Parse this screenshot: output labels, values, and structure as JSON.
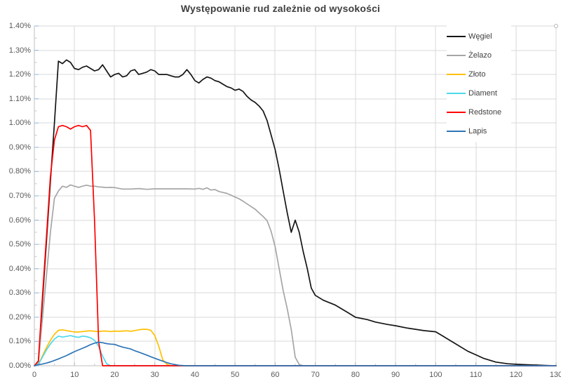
{
  "chart_data": {
    "type": "line",
    "title": "Występowanie rud zależnie od wysokości",
    "xlabel": "",
    "ylabel": "",
    "xlim": [
      0,
      130
    ],
    "ylim_percent": [
      0,
      1.4
    ],
    "grid": "on",
    "legend_position": "right-inside",
    "x_ticks": [
      "0",
      "10",
      "20",
      "30",
      "40",
      "50",
      "60",
      "70",
      "80",
      "90",
      "100",
      "110",
      "120",
      "130"
    ],
    "y_ticks": [
      "0.00%",
      "0.10%",
      "0.20%",
      "0.30%",
      "0.40%",
      "0.50%",
      "0.60%",
      "0.70%",
      "0.80%",
      "0.90%",
      "1.00%",
      "1.10%",
      "1.20%",
      "1.30%",
      "1.40%"
    ],
    "x_tick_values": [
      0,
      10,
      20,
      30,
      40,
      50,
      60,
      70,
      80,
      90,
      100,
      110,
      120,
      130
    ],
    "y_tick_values": [
      0,
      0.1,
      0.2,
      0.3,
      0.4,
      0.5,
      0.6,
      0.7,
      0.8,
      0.9,
      1.0,
      1.1,
      1.2,
      1.3,
      1.4
    ],
    "series": [
      {
        "name": "Węgiel",
        "color": "#151515",
        "points": [
          [
            0,
            0
          ],
          [
            1,
            0.01
          ],
          [
            2,
            0.26
          ],
          [
            3,
            0.51
          ],
          [
            4,
            0.76
          ],
          [
            5,
            1.0
          ],
          [
            6,
            1.255
          ],
          [
            7,
            1.245
          ],
          [
            8,
            1.26
          ],
          [
            9,
            1.25
          ],
          [
            10,
            1.225
          ],
          [
            11,
            1.22
          ],
          [
            12,
            1.23
          ],
          [
            13,
            1.235
          ],
          [
            14,
            1.225
          ],
          [
            15,
            1.215
          ],
          [
            16,
            1.22
          ],
          [
            17,
            1.24
          ],
          [
            18,
            1.215
          ],
          [
            19,
            1.19
          ],
          [
            20,
            1.2
          ],
          [
            21,
            1.205
          ],
          [
            22,
            1.19
          ],
          [
            23,
            1.195
          ],
          [
            24,
            1.215
          ],
          [
            25,
            1.22
          ],
          [
            26,
            1.2
          ],
          [
            27,
            1.205
          ],
          [
            28,
            1.21
          ],
          [
            29,
            1.22
          ],
          [
            30,
            1.215
          ],
          [
            31,
            1.2
          ],
          [
            32,
            1.2
          ],
          [
            33,
            1.2
          ],
          [
            34,
            1.195
          ],
          [
            35,
            1.19
          ],
          [
            36,
            1.19
          ],
          [
            37,
            1.2
          ],
          [
            38,
            1.22
          ],
          [
            39,
            1.2
          ],
          [
            40,
            1.175
          ],
          [
            41,
            1.165
          ],
          [
            42,
            1.18
          ],
          [
            43,
            1.19
          ],
          [
            44,
            1.185
          ],
          [
            45,
            1.175
          ],
          [
            46,
            1.17
          ],
          [
            47,
            1.16
          ],
          [
            48,
            1.15
          ],
          [
            49,
            1.145
          ],
          [
            50,
            1.135
          ],
          [
            51,
            1.14
          ],
          [
            52,
            1.13
          ],
          [
            53,
            1.11
          ],
          [
            54,
            1.095
          ],
          [
            55,
            1.085
          ],
          [
            56,
            1.07
          ],
          [
            57,
            1.05
          ],
          [
            58,
            1.01
          ],
          [
            59,
            0.95
          ],
          [
            60,
            0.89
          ],
          [
            61,
            0.81
          ],
          [
            62,
            0.72
          ],
          [
            63,
            0.63
          ],
          [
            64,
            0.55
          ],
          [
            65,
            0.6
          ],
          [
            66,
            0.55
          ],
          [
            67,
            0.47
          ],
          [
            68,
            0.4
          ],
          [
            69,
            0.32
          ],
          [
            70,
            0.29
          ],
          [
            72,
            0.27
          ],
          [
            75,
            0.25
          ],
          [
            78,
            0.22
          ],
          [
            80,
            0.2
          ],
          [
            83,
            0.19
          ],
          [
            85,
            0.18
          ],
          [
            88,
            0.17
          ],
          [
            90,
            0.165
          ],
          [
            93,
            0.155
          ],
          [
            95,
            0.15
          ],
          [
            97,
            0.145
          ],
          [
            100,
            0.14
          ],
          [
            102,
            0.12
          ],
          [
            105,
            0.09
          ],
          [
            108,
            0.06
          ],
          [
            110,
            0.045
          ],
          [
            112,
            0.03
          ],
          [
            115,
            0.015
          ],
          [
            118,
            0.008
          ],
          [
            120,
            0.006
          ],
          [
            123,
            0.004
          ],
          [
            125,
            0.003
          ],
          [
            128,
            0.001
          ],
          [
            130,
            0
          ]
        ]
      },
      {
        "name": "Żelazo",
        "color": "#a6a6a6",
        "points": [
          [
            0,
            0
          ],
          [
            1,
            0.01
          ],
          [
            2,
            0.19
          ],
          [
            3,
            0.37
          ],
          [
            4,
            0.55
          ],
          [
            5,
            0.69
          ],
          [
            6,
            0.72
          ],
          [
            7,
            0.74
          ],
          [
            8,
            0.735
          ],
          [
            9,
            0.745
          ],
          [
            10,
            0.74
          ],
          [
            11,
            0.735
          ],
          [
            12,
            0.74
          ],
          [
            13,
            0.744
          ],
          [
            14,
            0.74
          ],
          [
            15,
            0.74
          ],
          [
            16,
            0.737
          ],
          [
            17,
            0.736
          ],
          [
            18,
            0.734
          ],
          [
            19,
            0.735
          ],
          [
            20,
            0.734
          ],
          [
            21,
            0.731
          ],
          [
            22,
            0.728
          ],
          [
            24,
            0.728
          ],
          [
            26,
            0.73
          ],
          [
            28,
            0.727
          ],
          [
            30,
            0.729
          ],
          [
            32,
            0.729
          ],
          [
            34,
            0.729
          ],
          [
            36,
            0.729
          ],
          [
            38,
            0.729
          ],
          [
            40,
            0.728
          ],
          [
            41,
            0.731
          ],
          [
            42,
            0.727
          ],
          [
            43,
            0.733
          ],
          [
            44,
            0.724
          ],
          [
            45,
            0.726
          ],
          [
            46,
            0.718
          ],
          [
            47,
            0.714
          ],
          [
            48,
            0.71
          ],
          [
            49,
            0.703
          ],
          [
            50,
            0.695
          ],
          [
            51,
            0.688
          ],
          [
            52,
            0.678
          ],
          [
            53,
            0.667
          ],
          [
            54,
            0.656
          ],
          [
            55,
            0.645
          ],
          [
            56,
            0.63
          ],
          [
            57,
            0.615
          ],
          [
            58,
            0.598
          ],
          [
            59,
            0.553
          ],
          [
            60,
            0.49
          ],
          [
            61,
            0.4
          ],
          [
            62,
            0.31
          ],
          [
            63,
            0.235
          ],
          [
            64,
            0.15
          ],
          [
            65,
            0.035
          ],
          [
            66,
            0.005
          ],
          [
            67,
            0
          ],
          [
            130,
            0
          ]
        ]
      },
      {
        "name": "Złoto",
        "color": "#ffc000",
        "points": [
          [
            0,
            0
          ],
          [
            1,
            0.005
          ],
          [
            2,
            0.04
          ],
          [
            3,
            0.075
          ],
          [
            4,
            0.105
          ],
          [
            5,
            0.13
          ],
          [
            6,
            0.146
          ],
          [
            7,
            0.148
          ],
          [
            8,
            0.145
          ],
          [
            9,
            0.142
          ],
          [
            10,
            0.139
          ],
          [
            11,
            0.139
          ],
          [
            12,
            0.141
          ],
          [
            13,
            0.143
          ],
          [
            14,
            0.144
          ],
          [
            15,
            0.142
          ],
          [
            16,
            0.141
          ],
          [
            17,
            0.143
          ],
          [
            18,
            0.143
          ],
          [
            19,
            0.141
          ],
          [
            20,
            0.143
          ],
          [
            21,
            0.142
          ],
          [
            22,
            0.143
          ],
          [
            23,
            0.144
          ],
          [
            24,
            0.142
          ],
          [
            25,
            0.145
          ],
          [
            26,
            0.148
          ],
          [
            27,
            0.15
          ],
          [
            28,
            0.15
          ],
          [
            29,
            0.146
          ],
          [
            30,
            0.125
          ],
          [
            31,
            0.08
          ],
          [
            32,
            0.025
          ],
          [
            33,
            0.006
          ],
          [
            34,
            0
          ],
          [
            130,
            0
          ]
        ]
      },
      {
        "name": "Diament",
        "color": "#4dd9ec",
        "points": [
          [
            0,
            0
          ],
          [
            1,
            0.005
          ],
          [
            2,
            0.035
          ],
          [
            3,
            0.065
          ],
          [
            4,
            0.09
          ],
          [
            5,
            0.11
          ],
          [
            6,
            0.122
          ],
          [
            7,
            0.118
          ],
          [
            8,
            0.121
          ],
          [
            9,
            0.124
          ],
          [
            10,
            0.12
          ],
          [
            11,
            0.117
          ],
          [
            12,
            0.122
          ],
          [
            13,
            0.12
          ],
          [
            14,
            0.115
          ],
          [
            15,
            0.105
          ],
          [
            16,
            0.08
          ],
          [
            17,
            0.04
          ],
          [
            18,
            0.008
          ],
          [
            19,
            0
          ],
          [
            130,
            0
          ]
        ]
      },
      {
        "name": "Redstone",
        "color": "#fe0000",
        "points": [
          [
            0,
            0
          ],
          [
            1,
            0.02
          ],
          [
            2,
            0.28
          ],
          [
            3,
            0.53
          ],
          [
            4,
            0.78
          ],
          [
            5,
            0.93
          ],
          [
            6,
            0.985
          ],
          [
            7,
            0.99
          ],
          [
            8,
            0.985
          ],
          [
            9,
            0.975
          ],
          [
            10,
            0.985
          ],
          [
            11,
            0.99
          ],
          [
            12,
            0.985
          ],
          [
            13,
            0.99
          ],
          [
            14,
            0.97
          ],
          [
            15,
            0.6
          ],
          [
            16,
            0.1
          ],
          [
            17,
            0
          ],
          [
            130,
            0
          ]
        ]
      },
      {
        "name": "Lapis",
        "color": "#2e75b6",
        "points": [
          [
            0,
            0
          ],
          [
            1,
            0.004
          ],
          [
            2,
            0.007
          ],
          [
            3,
            0.011
          ],
          [
            4,
            0.016
          ],
          [
            5,
            0.022
          ],
          [
            6,
            0.028
          ],
          [
            7,
            0.035
          ],
          [
            8,
            0.042
          ],
          [
            9,
            0.05
          ],
          [
            10,
            0.058
          ],
          [
            11,
            0.065
          ],
          [
            12,
            0.072
          ],
          [
            13,
            0.079
          ],
          [
            14,
            0.087
          ],
          [
            15,
            0.093
          ],
          [
            16,
            0.097
          ],
          [
            17,
            0.095
          ],
          [
            18,
            0.091
          ],
          [
            19,
            0.089
          ],
          [
            20,
            0.088
          ],
          [
            21,
            0.082
          ],
          [
            22,
            0.077
          ],
          [
            23,
            0.073
          ],
          [
            24,
            0.069
          ],
          [
            25,
            0.062
          ],
          [
            26,
            0.056
          ],
          [
            27,
            0.05
          ],
          [
            28,
            0.044
          ],
          [
            29,
            0.037
          ],
          [
            30,
            0.031
          ],
          [
            31,
            0.025
          ],
          [
            32,
            0.019
          ],
          [
            33,
            0.013
          ],
          [
            34,
            0.008
          ],
          [
            35,
            0.005
          ],
          [
            36,
            0.002
          ],
          [
            37,
            0.001
          ],
          [
            38,
            0
          ],
          [
            130,
            0
          ]
        ]
      }
    ]
  },
  "legend": {
    "items": [
      {
        "label": "Węgiel",
        "color": "#151515"
      },
      {
        "label": "Żelazo",
        "color": "#a6a6a6"
      },
      {
        "label": "Złoto",
        "color": "#ffc000"
      },
      {
        "label": "Diament",
        "color": "#4dd9ec"
      },
      {
        "label": "Redstone",
        "color": "#fe0000"
      },
      {
        "label": "Lapis",
        "color": "#2e75b6"
      }
    ]
  },
  "style_colors": {
    "gridline": "#d9d9d9",
    "axis_line": "#bfbfbf",
    "y_major_tick": "#9dc3e6",
    "minor_tick": "#cfcfcf",
    "tick_label": "#595959",
    "title": "#3f3f3f"
  }
}
